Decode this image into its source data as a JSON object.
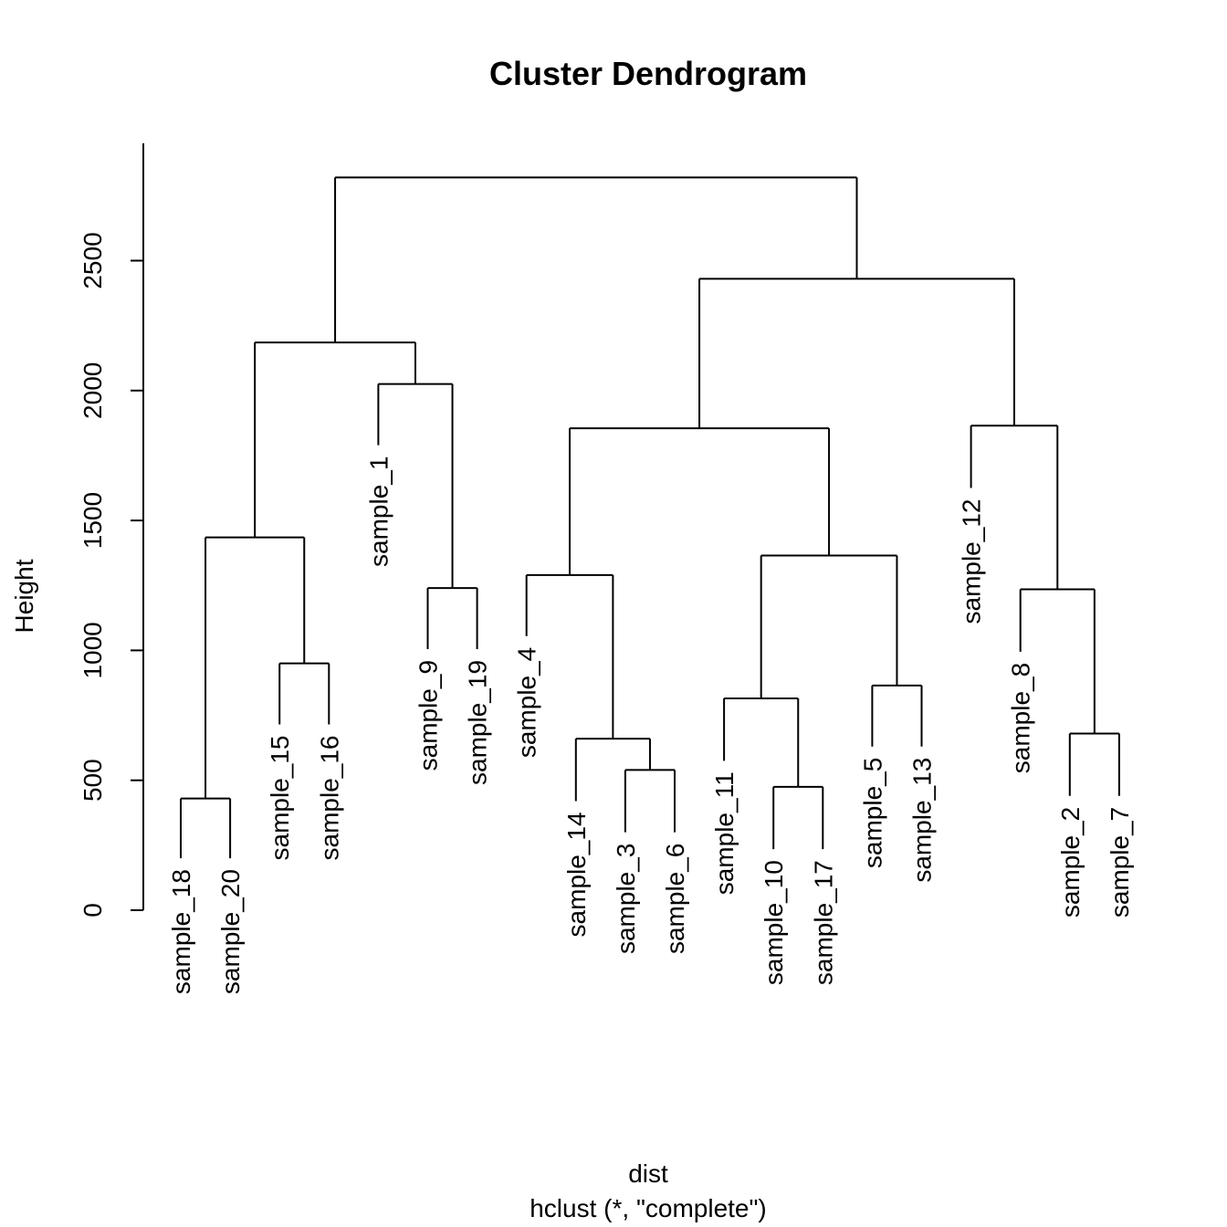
{
  "chart_data": {
    "type": "dendrogram",
    "title": "Cluster Dendrogram",
    "xlabel": "dist",
    "sub": "hclust (*, \"complete\")",
    "ylabel": "Height",
    "ylim": [
      0,
      2950
    ],
    "yticks": [
      0,
      500,
      1000,
      1500,
      2000,
      2500
    ],
    "leaves": [
      "sample_18",
      "sample_20",
      "sample_15",
      "sample_16",
      "sample_1",
      "sample_9",
      "sample_19",
      "sample_4",
      "sample_14",
      "sample_3",
      "sample_6",
      "sample_11",
      "sample_10",
      "sample_17",
      "sample_5",
      "sample_13",
      "sample_12",
      "sample_8",
      "sample_2",
      "sample_7"
    ],
    "merges": [
      {
        "left": "sample_18",
        "right": "sample_20",
        "height": 430
      },
      {
        "left": "sample_15",
        "right": "sample_16",
        "height": 950
      },
      {
        "left": "sample_9",
        "right": "sample_19",
        "height": 1240
      },
      {
        "left": "sample_3",
        "right": "sample_6",
        "height": 540
      },
      {
        "left": "sample_10",
        "right": "sample_17",
        "height": 475
      },
      {
        "left": "sample_5",
        "right": "sample_13",
        "height": 865
      },
      {
        "left": "sample_2",
        "right": "sample_7",
        "height": 680
      },
      {
        "left": 1,
        "right": 2,
        "height": 1435
      },
      {
        "left": "sample_1",
        "right": 3,
        "height": 2025
      },
      {
        "left": "sample_14",
        "right": 4,
        "height": 660
      },
      {
        "left": "sample_4",
        "right": 10,
        "height": 1290
      },
      {
        "left": "sample_11",
        "right": 5,
        "height": 815
      },
      {
        "left": 12,
        "right": 6,
        "height": 1365
      },
      {
        "left": 11,
        "right": 13,
        "height": 1855
      },
      {
        "left": "sample_8",
        "right": 7,
        "height": 1235
      },
      {
        "left": "sample_12",
        "right": 15,
        "height": 1865
      },
      {
        "left": 14,
        "right": 16,
        "height": 2430
      },
      {
        "left": 8,
        "right": 9,
        "height": 2185
      },
      {
        "left": 18,
        "right": 17,
        "height": 2820
      }
    ],
    "leaf_heights": {
      "sample_18": 200,
      "sample_20": 200,
      "sample_15": 715,
      "sample_16": 715,
      "sample_1": 1790,
      "sample_9": 1005,
      "sample_19": 1005,
      "sample_4": 1055,
      "sample_14": 420,
      "sample_3": 300,
      "sample_6": 300,
      "sample_11": 575,
      "sample_10": 235,
      "sample_17": 235,
      "sample_5": 630,
      "sample_13": 630,
      "sample_12": 1625,
      "sample_8": 995,
      "sample_2": 440,
      "sample_7": 440
    }
  }
}
